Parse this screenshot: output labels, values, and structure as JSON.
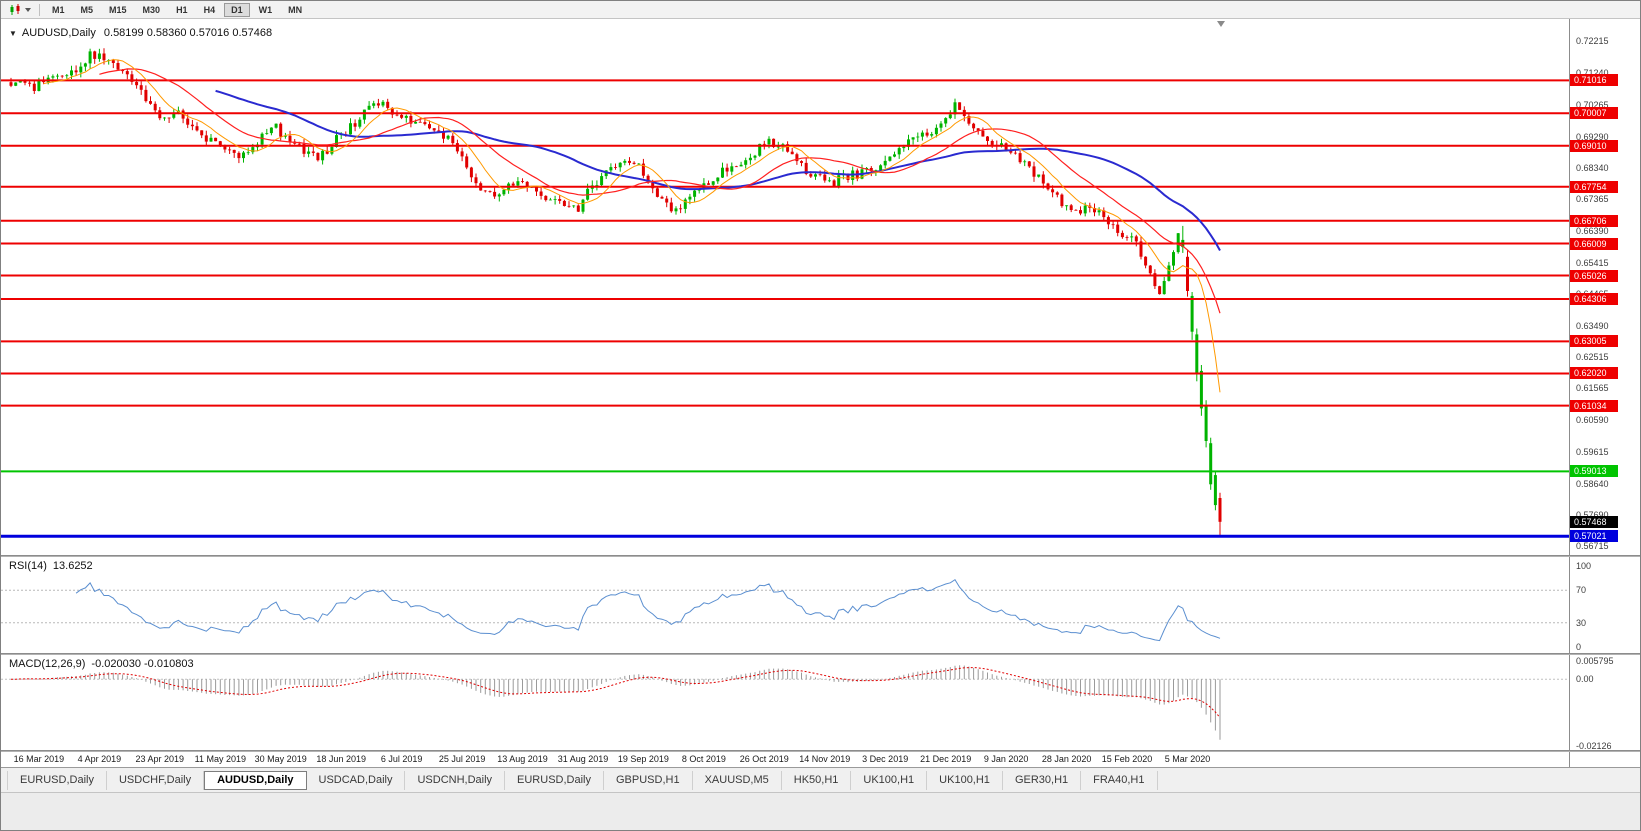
{
  "toolbar": {
    "chart_type_icon": "candlestick-chart-icon",
    "timeframes": [
      {
        "label": "M1",
        "active": false
      },
      {
        "label": "M5",
        "active": false
      },
      {
        "label": "M15",
        "active": false
      },
      {
        "label": "M30",
        "active": false
      },
      {
        "label": "H1",
        "active": false
      },
      {
        "label": "H4",
        "active": false
      },
      {
        "label": "D1",
        "active": true
      },
      {
        "label": "W1",
        "active": false
      },
      {
        "label": "MN",
        "active": false
      }
    ]
  },
  "chart": {
    "symbol_title": "AUDUSD,Daily",
    "ohlc_text": "0.58199 0.58360 0.57016 0.57468",
    "open": "0.58199",
    "high": "0.58360",
    "low": "0.57016",
    "close": "0.57468",
    "current_price": "0.57468",
    "y_axis_labels": [
      "0.72215",
      "0.71240",
      "0.70265",
      "0.69290",
      "0.68340",
      "0.67365",
      "0.66390",
      "0.65415",
      "0.64465",
      "0.63490",
      "0.62515",
      "0.61565",
      "0.60590",
      "0.59615",
      "0.58640",
      "0.57690",
      "0.56715"
    ],
    "x_axis_labels": [
      "16 Mar 2019",
      "4 Apr 2019",
      "23 Apr 2019",
      "11 May 2019",
      "30 May 2019",
      "18 Jun 2019",
      "6 Jul 2019",
      "25 Jul 2019",
      "13 Aug 2019",
      "31 Aug 2019",
      "19 Sep 2019",
      "8 Oct 2019",
      "26 Oct 2019",
      "14 Nov 2019",
      "3 Dec 2019",
      "21 Dec 2019",
      "9 Jan 2020",
      "28 Jan 2020",
      "15 Feb 2020",
      "5 Mar 2020"
    ],
    "levels": {
      "resistance_red": [
        "0.71016",
        "0.70007",
        "0.69010",
        "0.67754",
        "0.66706",
        "0.66009",
        "0.65026",
        "0.64306",
        "0.63005",
        "0.62020",
        "0.61034"
      ],
      "support_green": "0.59013",
      "support_blue": "0.57021"
    },
    "colors": {
      "bull": "#00b300",
      "bear": "#e00000",
      "level_red": "#ee0000",
      "level_green": "#00c400",
      "level_blue": "#0000dd",
      "ma_fast": "#ff9900",
      "ma_mid": "#ff2020",
      "ma_slow": "#2a2ad0",
      "current_badge": "#000000"
    },
    "candle_count": 261,
    "price_path": [
      [
        0,
        0.7095
      ],
      [
        4,
        0.7075
      ],
      [
        8,
        0.7105
      ],
      [
        13,
        0.7125
      ],
      [
        17,
        0.7185
      ],
      [
        20,
        0.716
      ],
      [
        24,
        0.712
      ],
      [
        28,
        0.706
      ],
      [
        32,
        0.7
      ],
      [
        36,
        0.6995
      ],
      [
        40,
        0.6955
      ],
      [
        45,
        0.689
      ],
      [
        49,
        0.6875
      ],
      [
        53,
        0.692
      ],
      [
        57,
        0.6955
      ],
      [
        61,
        0.6905
      ],
      [
        66,
        0.6865
      ],
      [
        70,
        0.692
      ],
      [
        75,
        0.6985
      ],
      [
        79,
        0.7035
      ],
      [
        83,
        0.6985
      ],
      [
        88,
        0.6965
      ],
      [
        92,
        0.6955
      ],
      [
        96,
        0.689
      ],
      [
        100,
        0.6785
      ],
      [
        104,
        0.6755
      ],
      [
        108,
        0.679
      ],
      [
        113,
        0.6765
      ],
      [
        118,
        0.6725
      ],
      [
        122,
        0.6715
      ],
      [
        126,
        0.6795
      ],
      [
        131,
        0.6865
      ],
      [
        135,
        0.6835
      ],
      [
        139,
        0.6755
      ],
      [
        142,
        0.67
      ],
      [
        146,
        0.674
      ],
      [
        150,
        0.678
      ],
      [
        154,
        0.683
      ],
      [
        158,
        0.6865
      ],
      [
        163,
        0.6915
      ],
      [
        167,
        0.688
      ],
      [
        171,
        0.683
      ],
      [
        175,
        0.6785
      ],
      [
        179,
        0.68
      ],
      [
        183,
        0.682
      ],
      [
        187,
        0.685
      ],
      [
        191,
        0.6885
      ],
      [
        196,
        0.6935
      ],
      [
        200,
        0.6965
      ],
      [
        203,
        0.702
      ],
      [
        206,
        0.6985
      ],
      [
        209,
        0.692
      ],
      [
        213,
        0.6895
      ],
      [
        217,
        0.6865
      ],
      [
        222,
        0.679
      ],
      [
        226,
        0.6725
      ],
      [
        230,
        0.6705
      ],
      [
        235,
        0.669
      ],
      [
        239,
        0.6635
      ],
      [
        242,
        0.66
      ],
      [
        245,
        0.6515
      ],
      [
        247,
        0.6445
      ],
      [
        249,
        0.653
      ],
      [
        251,
        0.663
      ],
      [
        252,
        0.6612
      ]
    ],
    "final_candles": {
      "start_index": 252,
      "ohlc": [
        [
          0.659,
          0.6655,
          0.6572,
          0.6612
        ],
        [
          0.656,
          0.658,
          0.6438,
          0.6455
        ],
        [
          0.633,
          0.6452,
          0.6305,
          0.644
        ],
        [
          0.62,
          0.634,
          0.6178,
          0.6322
        ],
        [
          0.6095,
          0.6228,
          0.6072,
          0.621
        ],
        [
          0.5995,
          0.612,
          0.5975,
          0.6102
        ],
        [
          0.5862,
          0.6005,
          0.5845,
          0.5988
        ],
        [
          0.5798,
          0.5902,
          0.5782,
          0.589
        ],
        [
          0.58199,
          0.5836,
          0.57016,
          0.57468
        ]
      ]
    }
  },
  "rsi": {
    "name": "RSI(14)",
    "value": "13.6252",
    "scale_labels": [
      "100",
      "70",
      "30",
      "0"
    ],
    "ref_levels": [
      "70",
      "30"
    ],
    "line_color": "#5b8fd0"
  },
  "macd": {
    "name": "MACD(12,26,9)",
    "values": "-0.020030 -0.010803",
    "scale_labels": [
      "0.005795",
      "0.00",
      "-0.02126"
    ],
    "histogram_color": "#9a9a9a",
    "signal_color": "#e00000"
  },
  "tabs": [
    {
      "label": "EURUSD,Daily",
      "active": false
    },
    {
      "label": "USDCHF,Daily",
      "active": false
    },
    {
      "label": "AUDUSD,Daily",
      "active": true
    },
    {
      "label": "USDCAD,Daily",
      "active": false
    },
    {
      "label": "USDCNH,Daily",
      "active": false
    },
    {
      "label": "EURUSD,Daily",
      "active": false
    },
    {
      "label": "GBPUSD,H1",
      "active": false
    },
    {
      "label": "XAUUSD,M5",
      "active": false
    },
    {
      "label": "HK50,H1",
      "active": false
    },
    {
      "label": "UK100,H1",
      "active": false
    },
    {
      "label": "UK100,H1",
      "active": false
    },
    {
      "label": "GER30,H1",
      "active": false
    },
    {
      "label": "FRA40,H1",
      "active": false
    }
  ]
}
